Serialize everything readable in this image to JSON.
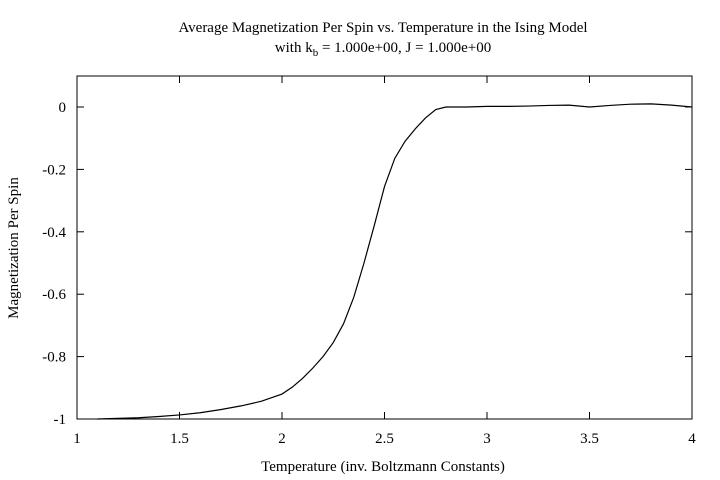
{
  "chart_data": {
    "type": "line",
    "title": "Average Magnetization Per Spin vs. Temperature in the Ising Model",
    "subtitle": {
      "prefix": "with k",
      "subscript": "b",
      "suffix": " = 1.000e+00, J = 1.000e+00"
    },
    "xlabel": "Temperature (inv. Boltzmann Constants)",
    "ylabel": "Magnetization Per Spin",
    "xlim": [
      1,
      4
    ],
    "ylim": [
      -1,
      0.1
    ],
    "xticks": [
      1,
      1.5,
      2,
      2.5,
      3,
      3.5,
      4
    ],
    "xtick_labels": [
      "1",
      "1.5",
      "2",
      "2.5",
      "3",
      "3.5",
      "4"
    ],
    "yticks": [
      0,
      -0.2,
      -0.4,
      -0.6,
      -0.8,
      -1
    ],
    "ytick_labels": [
      "0",
      "-0.2",
      "-0.4",
      "-0.6",
      "-0.8",
      "-1"
    ],
    "grid": false,
    "line_color": "#000000",
    "series": [
      {
        "x": [
          1.1,
          1.2,
          1.3,
          1.4,
          1.5,
          1.6,
          1.7,
          1.8,
          1.9,
          2.0,
          2.05,
          2.1,
          2.15,
          2.2,
          2.25,
          2.3,
          2.35,
          2.4,
          2.45,
          2.5,
          2.55,
          2.6,
          2.65,
          2.7,
          2.75,
          2.8,
          2.85,
          2.9,
          3.0,
          3.1,
          3.2,
          3.3,
          3.4,
          3.5,
          3.6,
          3.7,
          3.8,
          3.9,
          4.0
        ],
        "y": [
          -1.0,
          -0.998,
          -0.996,
          -0.992,
          -0.987,
          -0.98,
          -0.97,
          -0.958,
          -0.943,
          -0.92,
          -0.898,
          -0.87,
          -0.837,
          -0.8,
          -0.755,
          -0.695,
          -0.61,
          -0.5,
          -0.38,
          -0.255,
          -0.165,
          -0.11,
          -0.07,
          -0.035,
          -0.008,
          0.0,
          0.0,
          0.0,
          0.002,
          0.002,
          0.003,
          0.005,
          0.006,
          0.0,
          0.005,
          0.009,
          0.01,
          0.006,
          0.0
        ]
      }
    ]
  }
}
